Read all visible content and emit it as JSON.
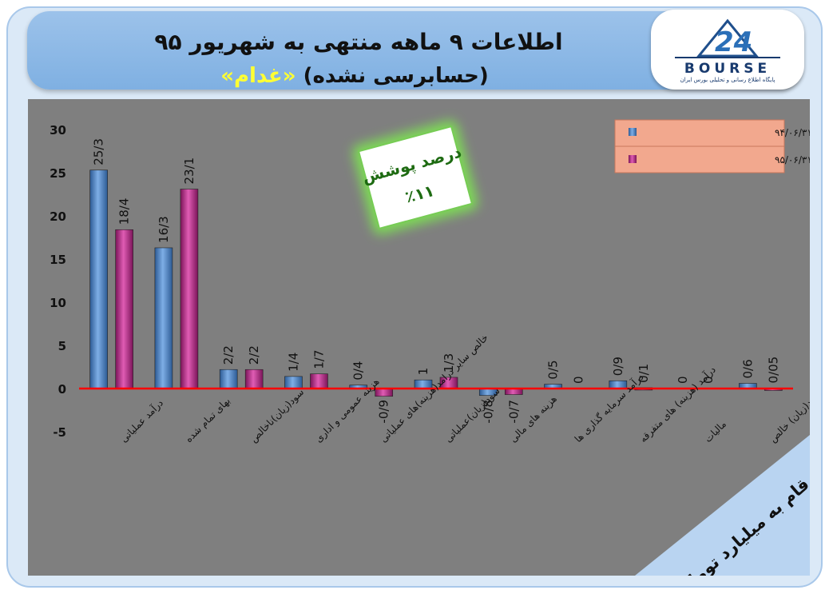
{
  "header": {
    "title_line1": "اطلاعات ۹ ماهه منتهی به شهریور ۹۵",
    "title_line2_prefix": "(حسابرسی نشده)",
    "title_line2_symbol": "«غدام»"
  },
  "logo": {
    "text": "BOURSE",
    "subtitle": "پایگاه اطلاع رسانی و تحلیلی بورس ایران",
    "icon": "24-bourse-logo-icon"
  },
  "callout": {
    "label": "درصد پوشش",
    "value": "٪۱۱"
  },
  "units_banner": "ارقام به میلیارد تومان",
  "colors": {
    "series1": "#4f81bd",
    "series2": "#c0358e",
    "zero_line": "#ff0000",
    "plot_bg": "#7f7f7f",
    "header": "#8db8e6"
  },
  "chart_data": {
    "type": "bar",
    "categories": [
      "درآمد عملیاتی",
      "بهای تمام شده",
      "سود(زیان)ناخالص",
      "هزینه عمومی و اداری",
      "خالص سایر درامد(هزینه)های عملیاتی",
      "سود(زیان)عملیاتی",
      "هزینه های مالی",
      "درآمد سرمایه گذاری ها",
      "درآمد (هزینه) های متفرقه",
      "مالیات",
      "سود(زیان) خالص"
    ],
    "series": [
      {
        "name": "۹ ماهه منتهی به ۹۴/۰۶/۳۱",
        "values": [
          25.3,
          16.3,
          2.2,
          1.4,
          0.4,
          1,
          -0.8,
          0.5,
          0.9,
          0,
          0.6
        ],
        "labels": [
          "25/3",
          "16/3",
          "2/2",
          "1/4",
          "0/4",
          "1",
          "-0/8",
          "0/5",
          "0/9",
          "0",
          "0/6"
        ]
      },
      {
        "name": "۹ ماهه منتهی به ۹۵/۰۶/۳۱",
        "values": [
          18.4,
          23.1,
          2.2,
          1.7,
          -0.9,
          1.3,
          -0.7,
          0,
          0.1,
          0,
          0.05
        ],
        "labels": [
          "18/4",
          "23/1",
          "2/2",
          "1/7",
          "-0/9",
          "1/3",
          "-0/7",
          "0",
          "0/1",
          "0",
          "0/05"
        ]
      }
    ],
    "yticks": [
      "30",
      "25",
      "20",
      "15",
      "10",
      "5",
      "0",
      "-5"
    ],
    "ylim": [
      -5,
      30
    ],
    "legend_position": "top-right",
    "grid": false
  }
}
